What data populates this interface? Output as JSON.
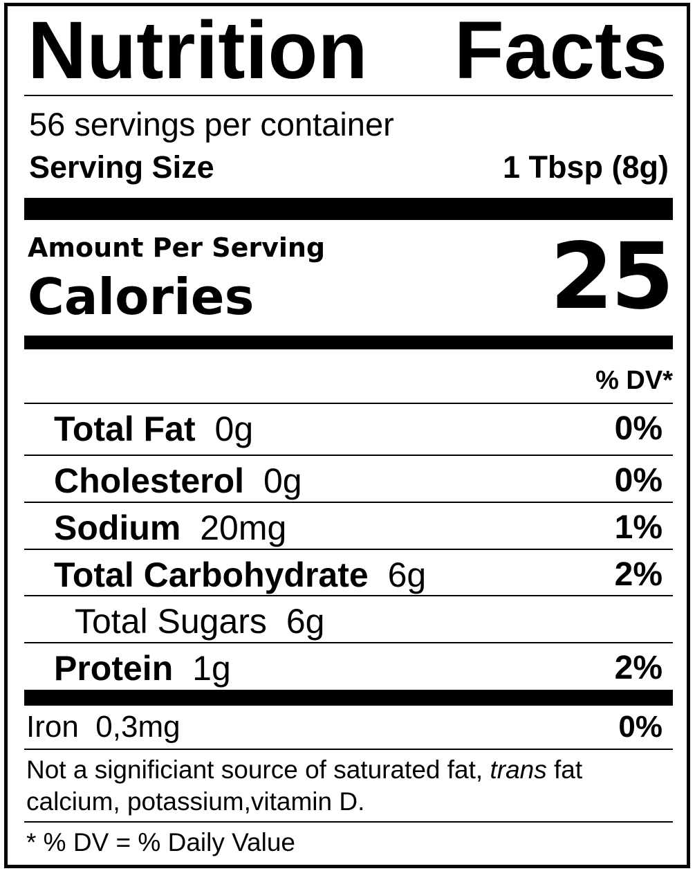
{
  "title": "Nutrition Facts",
  "servings_per_container": "56 servings per container",
  "serving_size": {
    "label": "Serving Size",
    "value": "1 Tbsp (8g)"
  },
  "amount_per_serving": "Amount Per Serving",
  "calories": {
    "label": "Calories",
    "value": "25"
  },
  "dv_header": "% DV*",
  "nutrients": [
    {
      "name": "Total Fat",
      "amount": "0g",
      "dv": "0%"
    },
    {
      "name": "Cholesterol",
      "amount": "0g",
      "dv": "0%"
    },
    {
      "name": "Sodium",
      "amount": "20mg",
      "dv": "1%"
    },
    {
      "name": "Total Carbohydrate",
      "amount": "6g",
      "dv": "2%"
    },
    {
      "name": "Total Sugars",
      "amount": "6g",
      "dv": ""
    },
    {
      "name": "Protein",
      "amount": "1g",
      "dv": "2%"
    }
  ],
  "iron": {
    "name": "Iron",
    "amount": "0,3mg",
    "dv": "0%"
  },
  "footnote": {
    "part1": "Not a significiant source of saturated fat, ",
    "italic": "trans",
    "part2": " fat calcium, potassium,vitamin D."
  },
  "dv_note": "* % DV = % Daily Value"
}
